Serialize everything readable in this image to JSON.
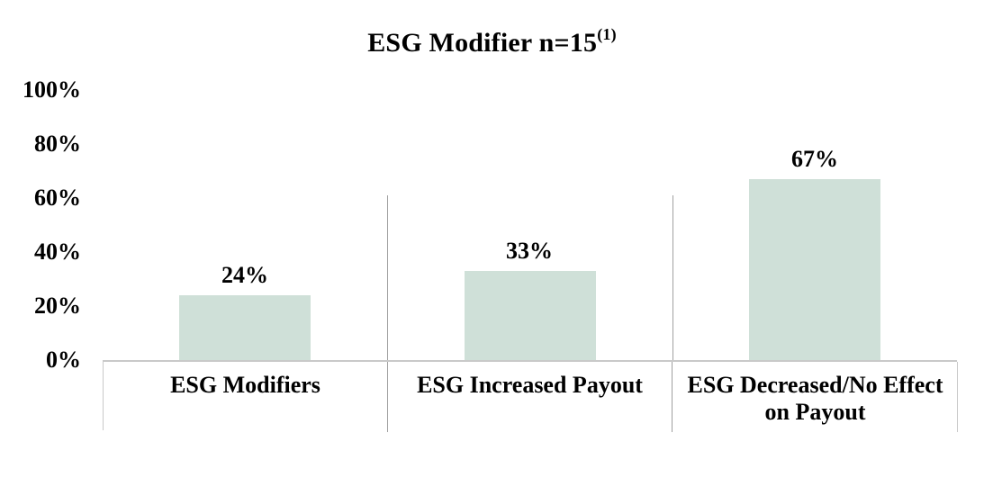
{
  "title": {
    "text": "ESG Modifier n=15",
    "superscript": "(1)"
  },
  "chart_data": {
    "type": "bar",
    "title": "ESG Modifier n=15(1)",
    "categories": [
      "ESG Modifiers",
      "ESG Increased Payout",
      "ESG Decreased/No Effect on Payout"
    ],
    "values": [
      24,
      33,
      67
    ],
    "value_labels": [
      "24%",
      "33%",
      "67%"
    ],
    "xlabel": "",
    "ylabel": "",
    "ylim": [
      0,
      100
    ],
    "yticks": [
      0,
      20,
      40,
      60,
      80,
      100
    ],
    "ytick_labels": [
      "0%",
      "20%",
      "40%",
      "60%",
      "80%",
      "100%"
    ],
    "grid": false,
    "legend": false,
    "bar_color": "#cfe0d8",
    "box_line_color": "#c9c9c9",
    "divider_color": "#a0a0a0",
    "text_color": "#000000"
  }
}
